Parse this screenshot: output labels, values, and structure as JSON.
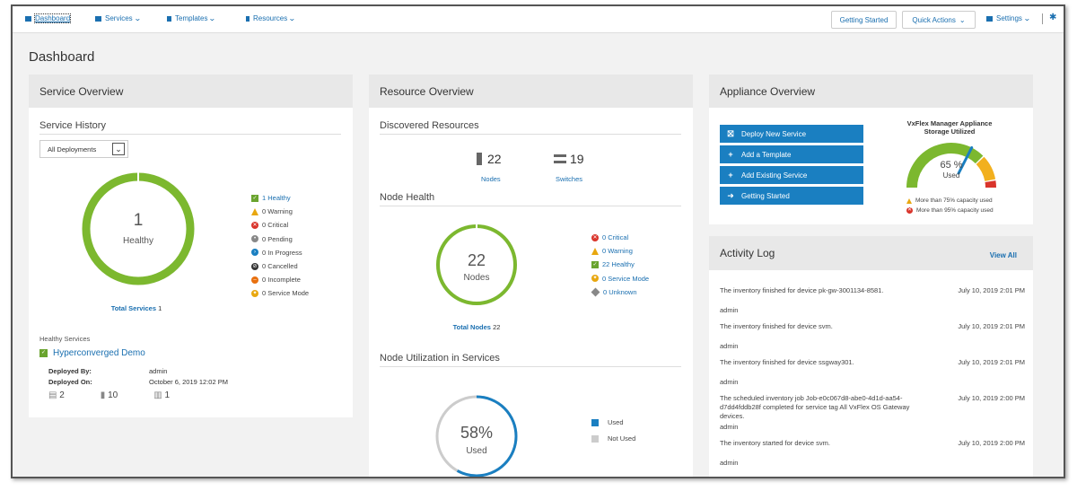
{
  "nav": {
    "dashboard": "Dashboard",
    "services": "Services",
    "templates": "Templates",
    "resources": "Resources",
    "getting_started": "Getting Started",
    "quick_actions": "Quick Actions",
    "settings": "Settings"
  },
  "page_title": "Dashboard",
  "service_overview": {
    "title": "Service Overview",
    "history_title": "Service History",
    "filter_value": "All Deployments",
    "ring_value": "1",
    "ring_label": "Healthy",
    "ring_healthy_fraction": 1.0,
    "legend": [
      {
        "label": "1 Healthy",
        "icon": "check-icon",
        "color": "#6aa42f"
      },
      {
        "label": "0 Warning",
        "icon": "warning-icon",
        "color": "#e8a70f"
      },
      {
        "label": "0 Critical",
        "icon": "critical-icon",
        "color": "#d9342b"
      },
      {
        "label": "0 Pending",
        "icon": "pending-icon",
        "color": "#888888"
      },
      {
        "label": "0 In Progress",
        "icon": "in-progress-icon",
        "color": "#1a7fc1"
      },
      {
        "label": "0 Cancelled",
        "icon": "cancelled-icon",
        "color": "#333333"
      },
      {
        "label": "0 Incomplete",
        "icon": "incomplete-icon",
        "color": "#e8700f"
      },
      {
        "label": "0 Service Mode",
        "icon": "service-mode-icon",
        "color": "#e8a70f"
      }
    ],
    "total_label": "Total Services",
    "total_value": "1",
    "healthy_services_label": "Healthy Services",
    "service_name": "Hyperconverged Demo",
    "deployed_by_label": "Deployed By:",
    "deployed_by_value": "admin",
    "deployed_on_label": "Deployed On:",
    "deployed_on_value": "October 6, 2019 12:02 PM",
    "counts": [
      "2",
      "10",
      "1"
    ]
  },
  "resource_overview": {
    "title": "Resource Overview",
    "discovered_title": "Discovered Resources",
    "nodes_count": "22",
    "nodes_label": "Nodes",
    "switches_count": "19",
    "switches_label": "Switches",
    "node_health_title": "Node Health",
    "ring_value": "22",
    "ring_label": "Nodes",
    "ring_healthy_fraction": 1.0,
    "legend": [
      {
        "label": "0 Critical",
        "icon": "critical-icon",
        "color": "#d9342b"
      },
      {
        "label": "0 Warning",
        "icon": "warning-icon",
        "color": "#e8a70f"
      },
      {
        "label": "22 Healthy",
        "icon": "check-icon",
        "color": "#6aa42f"
      },
      {
        "label": "0 Service Mode",
        "icon": "service-mode-icon",
        "color": "#e8a70f"
      },
      {
        "label": "0 Unknown",
        "icon": "unknown-icon",
        "color": "#888888"
      }
    ],
    "total_label": "Total Nodes",
    "total_value": "22",
    "utilization_title": "Node Utilization in Services",
    "util_value": "58%",
    "util_label": "Used",
    "util_fraction": 0.58,
    "util_legend": [
      {
        "label": "Used",
        "color": "#1a7fc1"
      },
      {
        "label": "Not Used",
        "color": "#cccccc"
      }
    ]
  },
  "appliance_overview": {
    "title": "Appliance Overview",
    "buttons": [
      {
        "label": "Deploy New Service",
        "icon": "deploy-icon"
      },
      {
        "label": "Add a Template",
        "icon": "plus-icon"
      },
      {
        "label": "Add Existing Service",
        "icon": "plus-icon"
      },
      {
        "label": "Getting Started",
        "icon": "arrow-circle-icon"
      }
    ],
    "gauge_title_1": "VxFlex Manager Appliance",
    "gauge_title_2": "Storage Utilized",
    "gauge_value": "65 %",
    "gauge_label": "Used",
    "gauge_fraction": 0.65,
    "warn_75": "More than 75% capacity used",
    "warn_95": "More than 95% capacity used"
  },
  "activity_log": {
    "title": "Activity Log",
    "view_all": "View All",
    "entries": [
      {
        "message": "The inventory finished for device pk-gw-3001134-8581.",
        "date": "July 10, 2019 2:01 PM",
        "user": "admin"
      },
      {
        "message": "The inventory finished for device svm.",
        "date": "July 10, 2019 2:01 PM",
        "user": "admin"
      },
      {
        "message": "The inventory finished for device ssgway301.",
        "date": "July 10, 2019 2:01 PM",
        "user": "admin"
      },
      {
        "message": "The scheduled inventory job Job-e0c067d8-abe0-4d1d-aa54-d7dd4fddb28f completed for service tag All VxFlex OS Gateway devices.",
        "date": "July 10, 2019 2:00 PM",
        "user": "admin"
      },
      {
        "message": "The inventory started for device svm.",
        "date": "July 10, 2019 2:00 PM",
        "user": "admin"
      }
    ]
  }
}
